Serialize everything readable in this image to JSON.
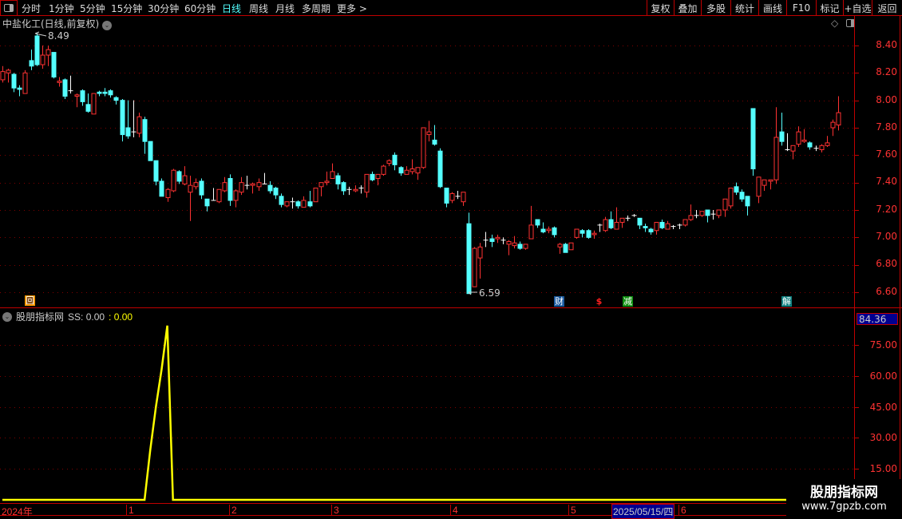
{
  "toolbar": {
    "tabs": [
      "分时",
      "1分钟",
      "5分钟",
      "15分钟",
      "30分钟",
      "60分钟",
      "日线",
      "周线",
      "月线",
      "多周期",
      "更多 >"
    ],
    "active_tab": "日线",
    "right_buttons": [
      "复权",
      "叠加",
      "多股",
      "统计",
      "画线",
      "F10",
      "标记",
      "+自选",
      "返回"
    ]
  },
  "chart": {
    "title": "中盐化工(日线,前复权)",
    "high_label": "8.49",
    "low_label": "6.59",
    "price_ticks": [
      "8.40",
      "8.20",
      "8.00",
      "7.80",
      "7.60",
      "7.40",
      "7.20",
      "7.00",
      "6.80",
      "6.60"
    ],
    "markers": [
      {
        "text": "回",
        "color": "#ff9900"
      },
      {
        "text": "财",
        "color": "#1a5aa0"
      },
      {
        "text": "$",
        "color": "#ff2020"
      },
      {
        "text": "减",
        "color": "#109010"
      },
      {
        "text": "解",
        "color": "#108080"
      }
    ],
    "colors": {
      "up": "#ff3232",
      "down": "#54ffff",
      "flat": "#ffffff",
      "grid": "#800000"
    }
  },
  "indicator": {
    "name": "股朋指标网",
    "ss_label": "SS: 0.00",
    "ss_value2": ": 0.00",
    "current_value": "84.36",
    "ticks": [
      "75.00",
      "60.00",
      "45.00",
      "30.00",
      "15.00"
    ],
    "line_color": "#ffff00"
  },
  "time_axis": {
    "labels": [
      "2024年",
      "1",
      "2",
      "3",
      "4",
      "5",
      "6"
    ],
    "cursor_date": "2025/05/15/四"
  },
  "watermark": {
    "line1": "股朋指标网",
    "line2": "www.7gpzb.com"
  },
  "chart_data": {
    "type": "candlestick",
    "fields": [
      "open",
      "close",
      "high",
      "low"
    ],
    "ylim": [
      6.6,
      8.4
    ],
    "candles": [
      [
        8.15,
        8.21,
        8.25,
        8.13
      ],
      [
        8.2,
        8.22,
        8.23,
        8.13
      ],
      [
        8.19,
        8.09,
        8.2,
        8.06
      ],
      [
        8.09,
        8.08,
        8.11,
        8.03
      ],
      [
        8.05,
        8.2,
        8.22,
        8.05
      ],
      [
        8.29,
        8.25,
        8.37,
        8.22
      ],
      [
        8.47,
        8.26,
        8.49,
        8.25
      ],
      [
        8.26,
        8.33,
        8.4,
        8.23
      ],
      [
        8.33,
        8.37,
        8.4,
        8.25
      ],
      [
        8.35,
        8.17,
        8.35,
        8.16
      ],
      [
        8.13,
        8.14,
        8.17,
        8.1
      ],
      [
        8.15,
        8.03,
        8.16,
        8.01
      ],
      [
        8.07,
        8.07,
        8.18,
        8.05
      ],
      [
        8.03,
        8.04,
        8.05,
        7.95
      ],
      [
        8.07,
        7.99,
        8.08,
        7.96
      ],
      [
        7.97,
        7.92,
        8.05,
        7.91
      ],
      [
        7.9,
        8.05,
        8.05,
        7.9
      ],
      [
        8.06,
        8.05,
        8.07,
        8.03
      ],
      [
        8.06,
        8.05,
        8.09,
        8.03
      ],
      [
        8.07,
        8.04,
        8.08,
        8.02
      ],
      [
        8.02,
        8.0,
        8.03,
        7.97
      ],
      [
        8.0,
        7.75,
        8.01,
        7.7
      ],
      [
        7.8,
        7.74,
        8.0,
        7.72
      ],
      [
        7.77,
        7.77,
        8.0,
        7.73
      ],
      [
        7.76,
        7.88,
        7.91,
        7.73
      ],
      [
        7.86,
        7.7,
        7.88,
        7.61
      ],
      [
        7.7,
        7.56,
        7.7,
        7.56
      ],
      [
        7.56,
        7.41,
        7.56,
        7.38
      ],
      [
        7.41,
        7.3,
        7.43,
        7.3
      ],
      [
        7.29,
        7.35,
        7.36,
        7.26
      ],
      [
        7.34,
        7.49,
        7.5,
        7.33
      ],
      [
        7.48,
        7.41,
        7.49,
        7.39
      ],
      [
        7.39,
        7.45,
        7.52,
        7.38
      ],
      [
        7.33,
        7.38,
        7.45,
        7.12
      ],
      [
        7.37,
        7.4,
        7.43,
        7.35
      ],
      [
        7.41,
        7.31,
        7.43,
        7.28
      ],
      [
        7.28,
        7.23,
        7.28,
        7.19
      ],
      [
        7.27,
        7.27,
        7.36,
        7.27
      ],
      [
        7.26,
        7.35,
        7.35,
        7.25
      ],
      [
        7.34,
        7.4,
        7.44,
        7.33
      ],
      [
        7.43,
        7.27,
        7.46,
        7.23
      ],
      [
        7.27,
        7.34,
        7.35,
        7.22
      ],
      [
        7.33,
        7.4,
        7.44,
        7.31
      ],
      [
        7.38,
        7.38,
        7.45,
        7.35
      ],
      [
        7.38,
        7.39,
        7.4,
        7.32
      ],
      [
        7.37,
        7.4,
        7.43,
        7.34
      ],
      [
        7.39,
        7.39,
        7.47,
        7.39
      ],
      [
        7.38,
        7.34,
        7.41,
        7.32
      ],
      [
        7.36,
        7.31,
        7.37,
        7.28
      ],
      [
        7.3,
        7.24,
        7.32,
        7.22
      ],
      [
        7.23,
        7.26,
        7.26,
        7.22
      ],
      [
        7.26,
        7.26,
        7.29,
        7.21
      ],
      [
        7.26,
        7.23,
        7.27,
        7.21
      ],
      [
        7.22,
        7.27,
        7.3,
        7.22
      ],
      [
        7.26,
        7.23,
        7.34,
        7.22
      ],
      [
        7.26,
        7.36,
        7.36,
        7.26
      ],
      [
        7.37,
        7.4,
        7.4,
        7.3
      ],
      [
        7.4,
        7.41,
        7.48,
        7.38
      ],
      [
        7.43,
        7.48,
        7.54,
        7.43
      ],
      [
        7.45,
        7.39,
        7.47,
        7.35
      ],
      [
        7.4,
        7.34,
        7.41,
        7.31
      ],
      [
        7.35,
        7.35,
        7.37,
        7.31
      ],
      [
        7.34,
        7.35,
        7.38,
        7.33
      ],
      [
        7.36,
        7.36,
        7.38,
        7.32
      ],
      [
        7.33,
        7.46,
        7.46,
        7.29
      ],
      [
        7.46,
        7.42,
        7.48,
        7.41
      ],
      [
        7.43,
        7.46,
        7.46,
        7.38
      ],
      [
        7.46,
        7.52,
        7.53,
        7.45
      ],
      [
        7.54,
        7.56,
        7.57,
        7.52
      ],
      [
        7.6,
        7.53,
        7.62,
        7.49
      ],
      [
        7.51,
        7.47,
        7.52,
        7.45
      ],
      [
        7.46,
        7.49,
        7.52,
        7.46
      ],
      [
        7.48,
        7.5,
        7.57,
        7.46
      ],
      [
        7.47,
        7.51,
        7.51,
        7.42
      ],
      [
        7.51,
        7.8,
        7.8,
        7.5
      ],
      [
        7.75,
        7.77,
        7.85,
        7.7
      ],
      [
        7.71,
        7.68,
        7.82,
        7.67
      ],
      [
        7.63,
        7.37,
        7.65,
        7.36
      ],
      [
        7.36,
        7.25,
        7.36,
        7.22
      ],
      [
        7.27,
        7.32,
        7.33,
        7.25
      ],
      [
        7.3,
        7.3,
        7.34,
        7.28
      ],
      [
        7.26,
        7.33,
        7.33,
        7.23
      ],
      [
        7.1,
        6.59,
        7.18,
        6.59
      ],
      [
        6.64,
        6.92,
        6.93,
        6.64
      ],
      [
        6.85,
        6.93,
        6.96,
        6.7
      ],
      [
        6.98,
        6.98,
        7.04,
        6.93
      ],
      [
        6.99,
        6.97,
        7.02,
        6.93
      ],
      [
        6.99,
        7.0,
        7.02,
        6.96
      ],
      [
        6.98,
        6.98,
        7.0,
        6.95
      ],
      [
        6.95,
        6.97,
        6.98,
        6.87
      ],
      [
        6.94,
        6.96,
        7.01,
        6.92
      ],
      [
        6.95,
        6.92,
        6.97,
        6.91
      ],
      [
        6.92,
        6.95,
        6.95,
        6.91
      ],
      [
        6.99,
        7.09,
        7.23,
        6.99
      ],
      [
        7.13,
        7.09,
        7.13,
        7.07
      ],
      [
        7.06,
        7.04,
        7.11,
        7.03
      ],
      [
        7.05,
        7.06,
        7.08,
        7.03
      ],
      [
        7.07,
        7.02,
        7.08,
        7.0
      ],
      [
        6.93,
        6.95,
        6.96,
        6.88
      ],
      [
        6.95,
        6.89,
        6.96,
        6.89
      ],
      [
        6.91,
        6.96,
        6.96,
        6.91
      ],
      [
        7.0,
        7.06,
        7.06,
        6.99
      ],
      [
        7.05,
        7.03,
        7.06,
        7.0
      ],
      [
        7.05,
        7.0,
        7.06,
        6.99
      ],
      [
        7.02,
        7.03,
        7.05,
        6.99
      ],
      [
        7.09,
        7.09,
        7.1,
        7.04
      ],
      [
        7.05,
        7.13,
        7.15,
        7.04
      ],
      [
        7.13,
        7.07,
        7.19,
        7.06
      ],
      [
        7.06,
        7.11,
        7.22,
        7.06
      ],
      [
        7.11,
        7.14,
        7.14,
        7.07
      ],
      [
        7.14,
        7.14,
        7.16,
        7.12
      ],
      [
        7.16,
        7.16,
        7.17,
        7.15
      ],
      [
        7.14,
        7.09,
        7.14,
        7.06
      ],
      [
        7.08,
        7.07,
        7.1,
        7.04
      ],
      [
        7.06,
        7.04,
        7.07,
        7.02
      ],
      [
        7.05,
        7.11,
        7.11,
        7.02
      ],
      [
        7.11,
        7.07,
        7.13,
        7.06
      ],
      [
        7.06,
        7.1,
        7.12,
        7.06
      ],
      [
        7.08,
        7.08,
        7.09,
        7.06
      ],
      [
        7.09,
        7.09,
        7.1,
        7.06
      ],
      [
        7.09,
        7.13,
        7.13,
        7.08
      ],
      [
        7.13,
        7.16,
        7.24,
        7.12
      ],
      [
        7.16,
        7.16,
        7.2,
        7.14
      ],
      [
        7.16,
        7.19,
        7.19,
        7.15
      ],
      [
        7.2,
        7.16,
        7.2,
        7.11
      ],
      [
        7.17,
        7.17,
        7.2,
        7.13
      ],
      [
        7.16,
        7.2,
        7.2,
        7.14
      ],
      [
        7.2,
        7.28,
        7.28,
        7.15
      ],
      [
        7.23,
        7.36,
        7.36,
        7.21
      ],
      [
        7.37,
        7.33,
        7.4,
        7.31
      ],
      [
        7.33,
        7.28,
        7.35,
        7.26
      ],
      [
        7.3,
        7.23,
        7.3,
        7.16
      ],
      [
        7.94,
        7.5,
        7.94,
        7.45
      ],
      [
        7.3,
        7.44,
        7.44,
        7.25
      ],
      [
        7.38,
        7.42,
        7.42,
        7.34
      ],
      [
        7.41,
        7.42,
        7.42,
        7.35
      ],
      [
        7.42,
        7.73,
        7.95,
        7.39
      ],
      [
        7.77,
        7.7,
        7.91,
        7.67
      ],
      [
        7.64,
        7.64,
        7.76,
        7.63
      ],
      [
        7.63,
        7.67,
        7.67,
        7.57
      ],
      [
        7.68,
        7.77,
        7.81,
        7.66
      ],
      [
        7.7,
        7.71,
        7.79,
        7.69
      ],
      [
        7.69,
        7.66,
        7.7,
        7.64
      ],
      [
        7.65,
        7.65,
        7.67,
        7.63
      ],
      [
        7.64,
        7.67,
        7.68,
        7.62
      ],
      [
        7.67,
        7.69,
        7.74,
        7.66
      ],
      [
        7.8,
        7.84,
        7.86,
        7.74
      ],
      [
        7.82,
        7.91,
        8.03,
        7.78
      ]
    ],
    "ss": [
      0,
      0,
      0,
      0,
      0,
      0,
      0,
      0,
      0,
      0,
      0,
      0,
      0,
      0,
      0,
      0,
      0,
      0,
      0,
      0,
      0,
      0,
      0,
      0,
      0,
      0,
      24,
      45,
      63,
      84.36,
      0,
      0,
      0,
      0,
      0,
      0,
      0,
      0,
      0,
      0,
      0,
      0,
      0,
      0,
      0,
      0,
      0,
      0,
      0,
      0,
      0,
      0,
      0,
      0,
      0,
      0,
      0,
      0,
      0,
      0,
      0,
      0,
      0,
      0,
      0,
      0,
      0,
      0,
      0,
      0,
      0,
      0,
      0,
      0,
      0,
      0,
      0,
      0,
      0,
      0,
      0,
      0,
      0,
      0,
      0,
      0,
      0,
      0,
      0,
      0,
      0,
      0,
      0,
      0,
      0,
      0,
      0,
      0,
      0,
      0,
      0,
      0,
      0,
      0,
      0,
      0,
      0,
      0,
      0,
      0,
      0,
      0,
      0,
      0,
      0,
      0,
      0,
      0,
      0,
      0,
      0,
      0,
      0,
      0,
      0,
      0,
      0,
      0,
      0,
      0,
      0,
      0,
      0,
      0,
      0,
      0,
      0,
      0,
      0,
      0,
      0,
      0,
      0,
      0,
      0,
      0,
      0,
      0
    ],
    "ss_ylim": [
      0,
      84.36
    ]
  }
}
